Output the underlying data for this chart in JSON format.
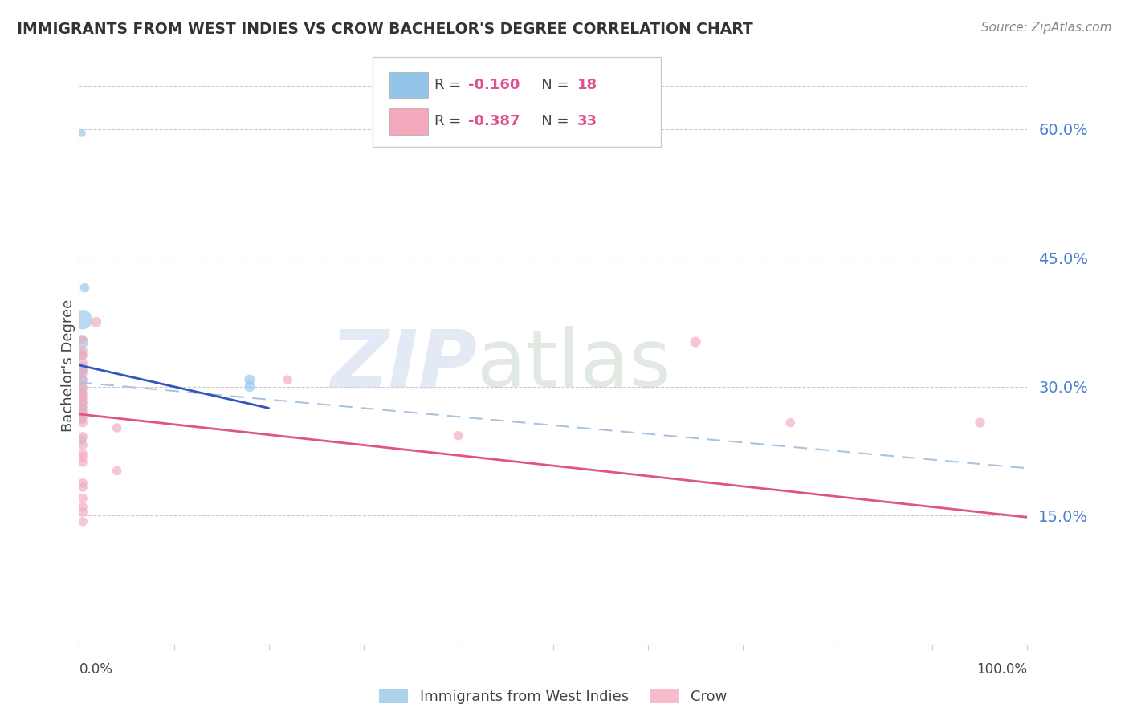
{
  "title": "IMMIGRANTS FROM WEST INDIES VS CROW BACHELOR'S DEGREE CORRELATION CHART",
  "source": "Source: ZipAtlas.com",
  "ylabel": "Bachelor's Degree",
  "right_yticks": [
    0.15,
    0.3,
    0.45,
    0.6
  ],
  "right_yticklabels": [
    "15.0%",
    "30.0%",
    "45.0%",
    "60.0%"
  ],
  "xlim": [
    0.0,
    1.0
  ],
  "ylim": [
    0.0,
    0.65
  ],
  "legend_label1": "Immigrants from West Indies",
  "legend_label2": "Crow",
  "blue_color": "#92c5e8",
  "pink_color": "#f4a8bc",
  "blue_line_color": "#3355bb",
  "pink_line_color": "#e05580",
  "dashed_line_color": "#a8c4e0",
  "blue_line": [
    [
      0.0,
      0.325
    ],
    [
      0.2,
      0.275
    ]
  ],
  "pink_line": [
    [
      0.0,
      0.268
    ],
    [
      1.0,
      0.148
    ]
  ],
  "dashed_line": [
    [
      0.0,
      0.305
    ],
    [
      1.0,
      0.205
    ]
  ],
  "blue_dots": [
    [
      0.003,
      0.595
    ],
    [
      0.006,
      0.415
    ],
    [
      0.004,
      0.378
    ],
    [
      0.003,
      0.352
    ],
    [
      0.003,
      0.338
    ],
    [
      0.003,
      0.322
    ],
    [
      0.003,
      0.315
    ],
    [
      0.003,
      0.308
    ],
    [
      0.003,
      0.3
    ],
    [
      0.003,
      0.293
    ],
    [
      0.003,
      0.288
    ],
    [
      0.003,
      0.282
    ],
    [
      0.003,
      0.277
    ],
    [
      0.003,
      0.27
    ],
    [
      0.003,
      0.262
    ],
    [
      0.003,
      0.238
    ],
    [
      0.18,
      0.308
    ],
    [
      0.18,
      0.3
    ]
  ],
  "blue_sizes": [
    50,
    70,
    300,
    140,
    90,
    110,
    90,
    90,
    90,
    80,
    80,
    90,
    90,
    80,
    70,
    70,
    90,
    90
  ],
  "pink_dots": [
    [
      0.003,
      0.355
    ],
    [
      0.004,
      0.342
    ],
    [
      0.004,
      0.336
    ],
    [
      0.004,
      0.328
    ],
    [
      0.004,
      0.318
    ],
    [
      0.004,
      0.308
    ],
    [
      0.004,
      0.298
    ],
    [
      0.004,
      0.292
    ],
    [
      0.004,
      0.287
    ],
    [
      0.004,
      0.282
    ],
    [
      0.004,
      0.275
    ],
    [
      0.004,
      0.27
    ],
    [
      0.004,
      0.263
    ],
    [
      0.004,
      0.258
    ],
    [
      0.004,
      0.242
    ],
    [
      0.004,
      0.232
    ],
    [
      0.004,
      0.222
    ],
    [
      0.004,
      0.218
    ],
    [
      0.004,
      0.212
    ],
    [
      0.004,
      0.188
    ],
    [
      0.004,
      0.183
    ],
    [
      0.004,
      0.17
    ],
    [
      0.004,
      0.16
    ],
    [
      0.004,
      0.154
    ],
    [
      0.004,
      0.143
    ],
    [
      0.018,
      0.375
    ],
    [
      0.04,
      0.252
    ],
    [
      0.04,
      0.202
    ],
    [
      0.22,
      0.308
    ],
    [
      0.4,
      0.243
    ],
    [
      0.65,
      0.352
    ],
    [
      0.75,
      0.258
    ],
    [
      0.95,
      0.258
    ]
  ],
  "pink_sizes": [
    70,
    70,
    70,
    70,
    70,
    70,
    70,
    70,
    70,
    70,
    70,
    70,
    70,
    70,
    70,
    70,
    70,
    70,
    70,
    70,
    70,
    70,
    70,
    70,
    70,
    90,
    70,
    70,
    70,
    70,
    90,
    70,
    80
  ]
}
